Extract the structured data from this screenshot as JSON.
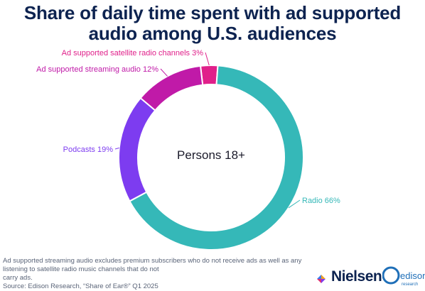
{
  "title_lines": [
    "Share of daily time spent with ad supported",
    "audio among U.S. audiences"
  ],
  "center_label": "Persons 18+",
  "footnote_lines": [
    "Ad supported streaming audio excludes premium subscribers who do not receive ads as well as any listening to satellite radio music channels that do not",
    "carry ads.",
    "Source: Edison Research, “Share of Ear®” Q1 2025"
  ],
  "logos": {
    "nielsen": "Nielsen",
    "edison": "edison",
    "edison_sub": "research"
  },
  "colors": {
    "title": "#0d2350",
    "footnote": "#5a6478"
  },
  "chart_data": {
    "type": "pie",
    "style": "donut",
    "title": "Share of daily time spent with ad supported audio among U.S. audiences",
    "center_text": "Persons 18+",
    "unit": "%",
    "legend": "none",
    "slices": [
      {
        "label": "Ad supported satellite radio channels",
        "value": 3,
        "color": "#e0208a"
      },
      {
        "label": "Radio",
        "value": 66,
        "color": "#35b8b8"
      },
      {
        "label": "Podcasts",
        "value": 19,
        "color": "#7d3cf0"
      },
      {
        "label": "Ad supported streaming audio",
        "value": 12,
        "color": "#c01aa8"
      }
    ]
  }
}
